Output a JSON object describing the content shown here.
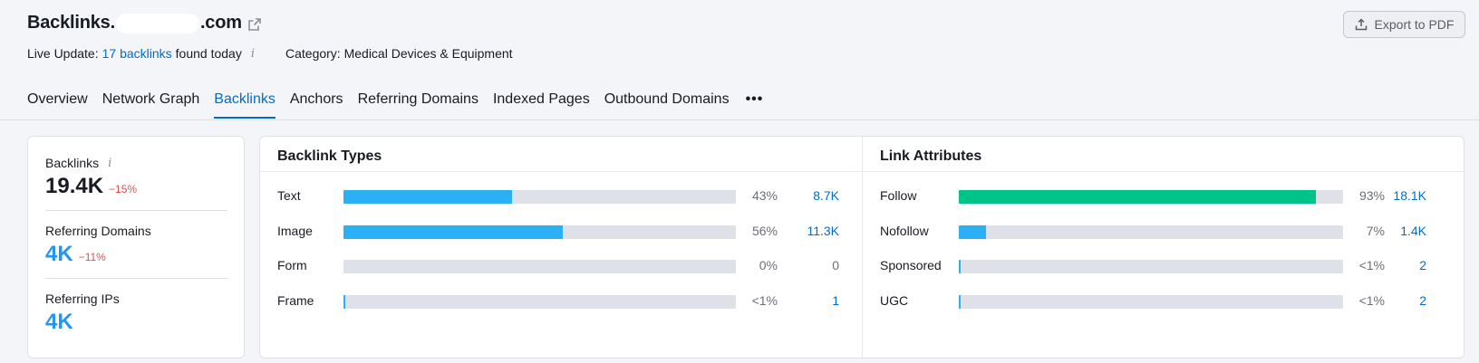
{
  "header": {
    "title_prefix": "Backlinks.",
    "title_suffix": ".com",
    "live_update_prefix": "Live Update:",
    "live_update_link": "17 backlinks",
    "live_update_suffix": "found today",
    "info_glyph": "i",
    "category": "Category: Medical Devices & Equipment",
    "export_label": "Export to PDF"
  },
  "tabs": [
    {
      "label": "Overview",
      "active": false
    },
    {
      "label": "Network Graph",
      "active": false
    },
    {
      "label": "Backlinks",
      "active": true
    },
    {
      "label": "Anchors",
      "active": false
    },
    {
      "label": "Referring Domains",
      "active": false
    },
    {
      "label": "Indexed Pages",
      "active": false
    },
    {
      "label": "Outbound Domains",
      "active": false
    }
  ],
  "tabs_more": "•••",
  "summary": {
    "backlinks": {
      "label": "Backlinks",
      "value": "19.4K",
      "delta": "−15%"
    },
    "referring_domains": {
      "label": "Referring Domains",
      "value": "4K",
      "delta": "−11%"
    },
    "referring_ips": {
      "label": "Referring IPs",
      "value": "4K"
    }
  },
  "backlink_types": {
    "title": "Backlink Types",
    "rows": [
      {
        "label": "Text",
        "fraction": 0.43,
        "pct": "43%",
        "count": "8.7K"
      },
      {
        "label": "Image",
        "fraction": 0.56,
        "pct": "56%",
        "count": "11.3K"
      },
      {
        "label": "Form",
        "fraction": 0,
        "pct": "0%",
        "count": "0"
      },
      {
        "label": "Frame",
        "fraction": 0.004,
        "pct": "<1%",
        "count": "1"
      }
    ],
    "bar_color": "#2bb0f6",
    "count_zero_color": "#6c6e79"
  },
  "link_attributes": {
    "title": "Link Attributes",
    "rows": [
      {
        "label": "Follow",
        "fraction": 0.93,
        "pct": "93%",
        "count": "18.1K",
        "color": "#00c389"
      },
      {
        "label": "Nofollow",
        "fraction": 0.07,
        "pct": "7%",
        "count": "1.4K",
        "color": "#2bb0f6"
      },
      {
        "label": "Sponsored",
        "fraction": 0.004,
        "pct": "<1%",
        "count": "2",
        "color": "#2bb0f6"
      },
      {
        "label": "UGC",
        "fraction": 0.004,
        "pct": "<1%",
        "count": "2",
        "color": "#2bb0f6"
      }
    ]
  }
}
